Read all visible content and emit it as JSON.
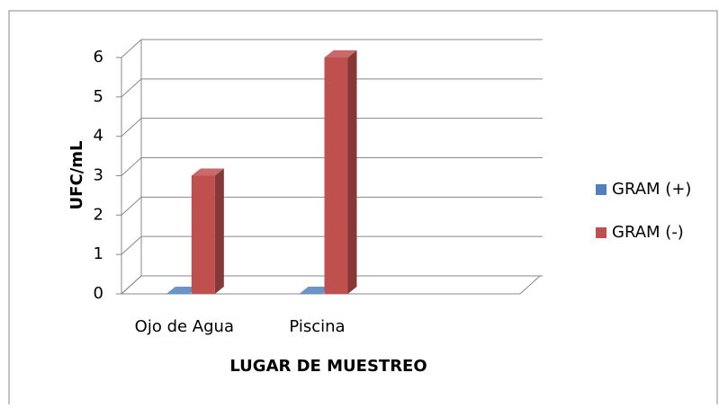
{
  "chart_data": {
    "type": "bar3d",
    "categories": [
      "Ojo de Agua",
      "Piscina",
      null
    ],
    "series": [
      {
        "name": "GRAM (+)",
        "color": "#4f81bd",
        "values": [
          0,
          0,
          null
        ]
      },
      {
        "name": "GRAM (-)",
        "color": "#c0504d",
        "values": [
          3,
          6,
          null
        ]
      }
    ],
    "ylabel": "UFC/mL",
    "xlabel": "LUGAR DE MUESTREO",
    "ylim": [
      0,
      6
    ],
    "yticks": [
      0,
      1,
      2,
      3,
      4,
      5,
      6
    ],
    "grid": true,
    "legend": "right"
  }
}
